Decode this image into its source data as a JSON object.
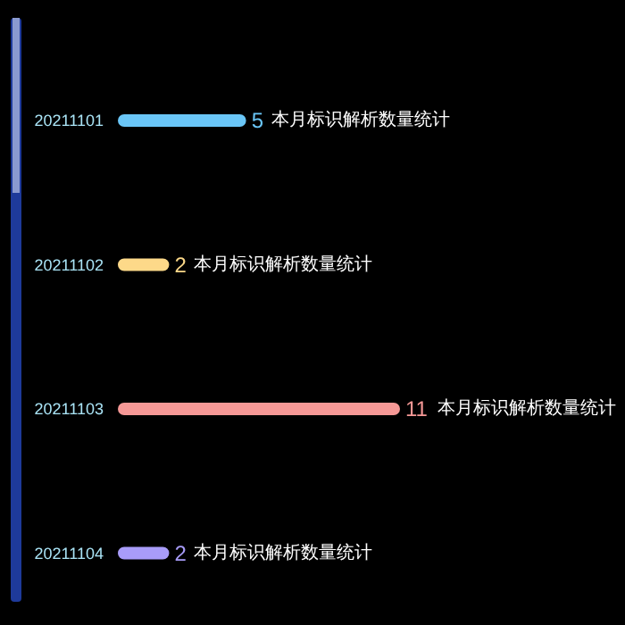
{
  "chart_data": {
    "type": "bar",
    "orientation": "horizontal",
    "data_labels": true,
    "categories": [
      "20211101",
      "20211102",
      "20211103",
      "20211104"
    ],
    "series": [
      {
        "name": "本月标识解析数量统计",
        "values": [
          5,
          2,
          11,
          2
        ],
        "colors": [
          "#6ac6f7",
          "#fdd989",
          "#f69896",
          "#a89cf9"
        ]
      }
    ]
  }
}
